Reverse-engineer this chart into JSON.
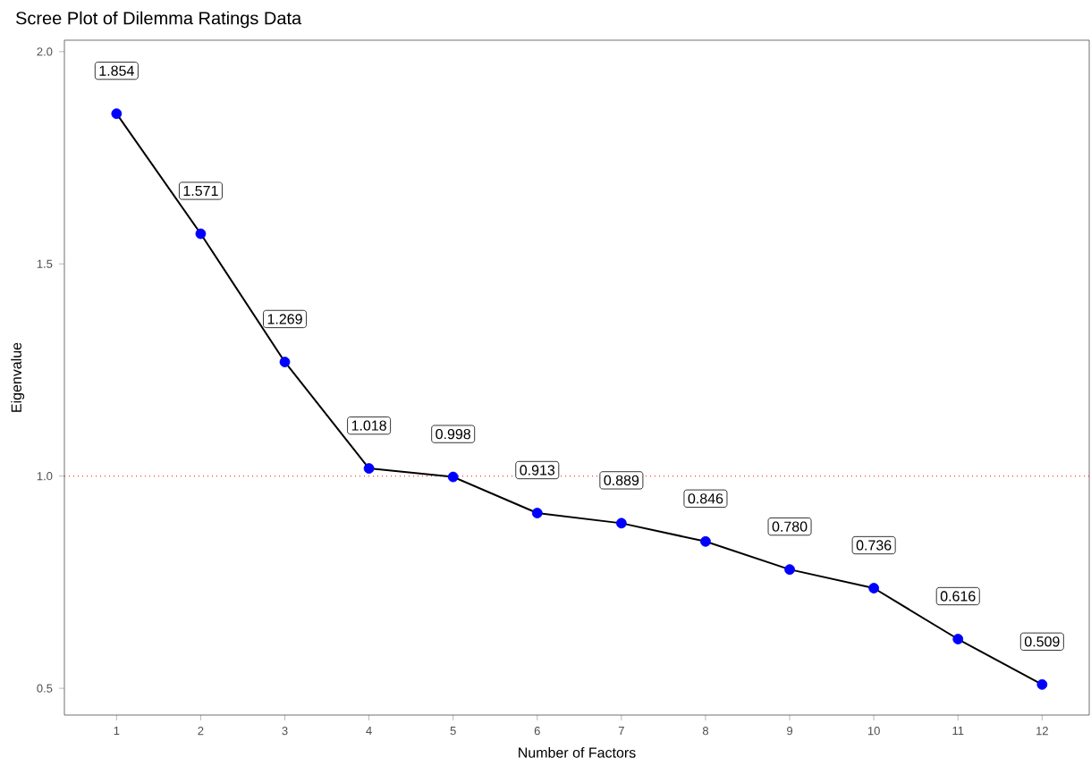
{
  "chart_data": {
    "type": "line",
    "title": "Scree Plot of Dilemma Ratings Data",
    "xlabel": "Number of Factors",
    "ylabel": "Eigenvalue",
    "x": [
      1,
      2,
      3,
      4,
      5,
      6,
      7,
      8,
      9,
      10,
      11,
      12
    ],
    "series": [
      {
        "color": "#000000",
        "colors": [
          "#0000ff",
          "#0000ff",
          "#0000ff",
          "#0000ff",
          "#0000ff",
          "#0000ff",
          "#0000ff",
          "#0000ff",
          "#0000ff",
          "#0000ff",
          "#0000ff",
          "#0000ff"
        ],
        "values": [
          1.854,
          1.571,
          1.269,
          1.018,
          0.998,
          0.913,
          0.889,
          0.846,
          0.78,
          0.736,
          0.616,
          0.509
        ],
        "value_labels": [
          "1.854",
          "1.571",
          "1.269",
          "1.018",
          "0.998",
          "0.913",
          "0.889",
          "0.846",
          "0.780",
          "0.736",
          "0.616",
          "0.509"
        ]
      }
    ],
    "marker": "circle",
    "line_style": "solid",
    "grid": false,
    "xlim": [
      0.38,
      12.56
    ],
    "ylim": [
      0.437,
      2.027
    ],
    "xticks": [
      1,
      2,
      3,
      4,
      5,
      6,
      7,
      8,
      9,
      10,
      11,
      12
    ],
    "yticks": [
      0.5,
      {
        "value": 1.0,
        "label": "1.0"
      },
      1.5,
      {
        "value": 2.0,
        "label": "2.0"
      }
    ],
    "ref_lines": [
      {
        "axis": "y",
        "value": 1.0,
        "color": "#ff0000",
        "line_style": "dotted"
      }
    ]
  }
}
